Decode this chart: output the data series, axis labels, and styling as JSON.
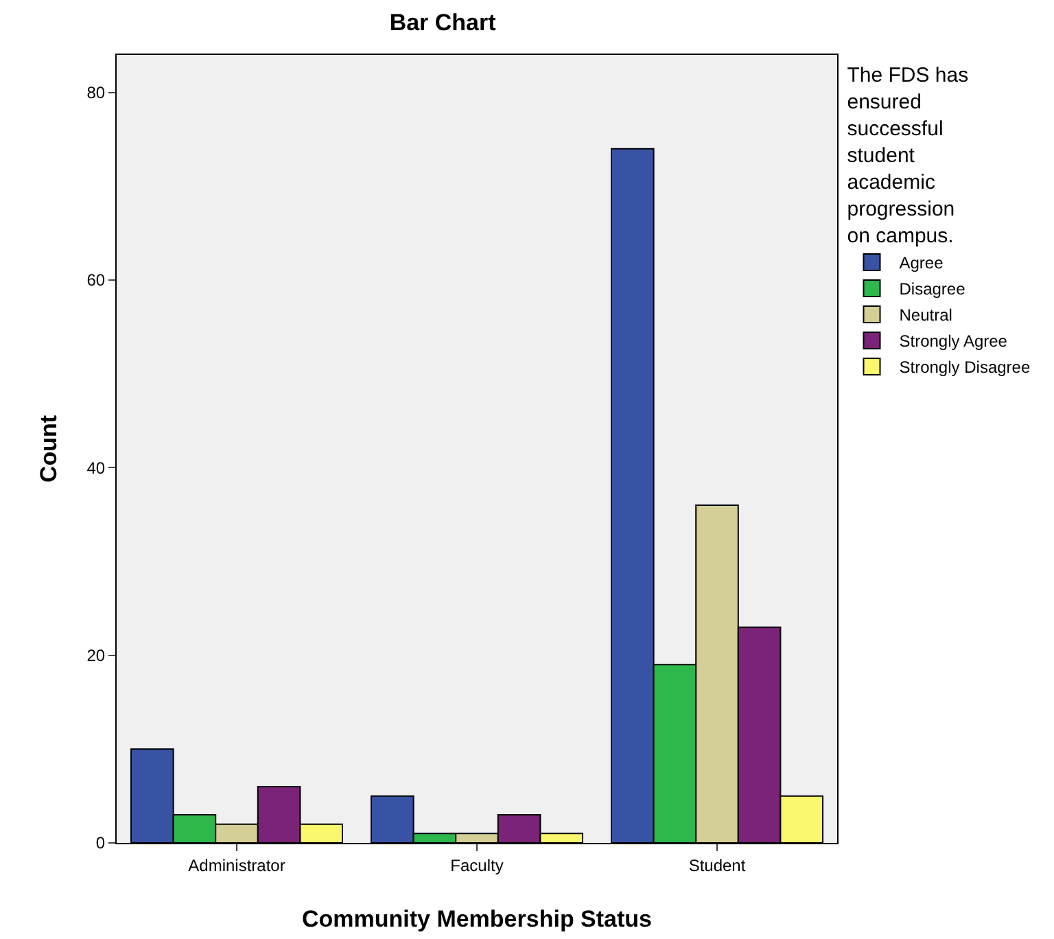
{
  "chart_data": {
    "type": "bar",
    "title": "Bar Chart",
    "xlabel": "Community Membership Status",
    "ylabel": "Count",
    "legend_title": "The FDS has ensured successful student academic progression on campus.",
    "categories": [
      "Administrator",
      "Faculty",
      "Student"
    ],
    "series": [
      {
        "name": "Agree",
        "color": "#3953a4",
        "values": [
          10,
          5,
          74
        ]
      },
      {
        "name": "Disagree",
        "color": "#2db84c",
        "values": [
          3,
          1,
          19
        ]
      },
      {
        "name": "Neutral",
        "color": "#d4cf96",
        "values": [
          2,
          1,
          36
        ]
      },
      {
        "name": "Strongly Agree",
        "color": "#7b2378",
        "values": [
          6,
          3,
          23
        ]
      },
      {
        "name": "Strongly Disagree",
        "color": "#fbf870",
        "values": [
          2,
          1,
          5
        ]
      }
    ],
    "ylim": [
      0,
      84
    ],
    "yticks": [
      0,
      20,
      40,
      60,
      80
    ],
    "grid": false,
    "legend": "top right"
  }
}
